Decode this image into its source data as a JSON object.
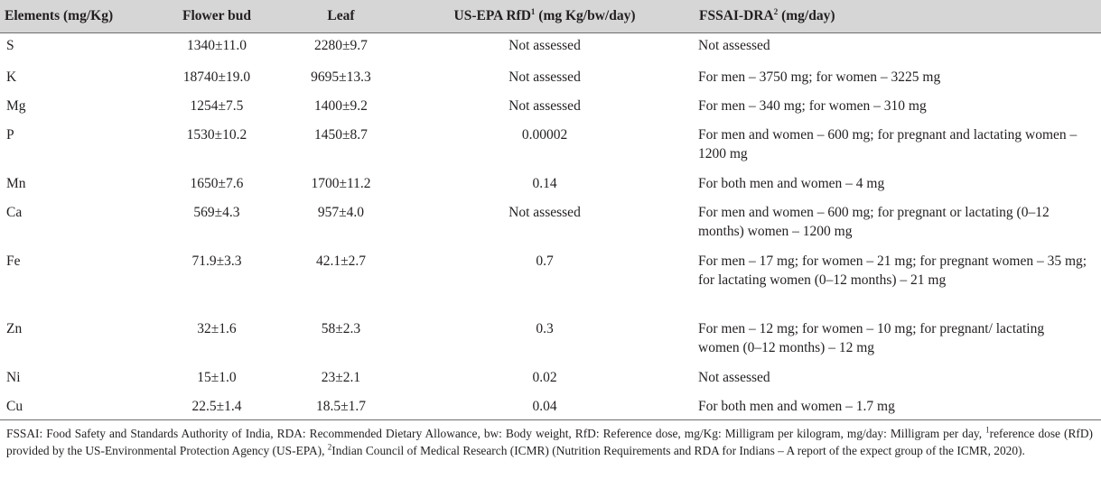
{
  "table": {
    "headers": {
      "elements": "Elements (mg/Kg)",
      "flower_bud": "Flower bud",
      "leaf": "Leaf",
      "us_epa": "US-EPA RfD",
      "us_epa_sup": "1",
      "us_epa_unit": " (mg Kg/bw/day)",
      "fssai": "FSSAI-DRA",
      "fssai_sup": "2",
      "fssai_unit": " (mg/day)"
    },
    "rows": [
      {
        "element": "S",
        "flower_bud": "1340±11.0",
        "leaf": "2280±9.7",
        "rfd": "Not assessed",
        "dra": "Not assessed"
      },
      {
        "element": "K",
        "flower_bud": "18740±19.0",
        "leaf": "9695±13.3",
        "rfd": "Not assessed",
        "dra": "For men – 3750 mg; for women – 3225 mg"
      },
      {
        "element": "Mg",
        "flower_bud": "1254±7.5",
        "leaf": "1400±9.2",
        "rfd": "Not assessed",
        "dra": "For men – 340 mg; for women – 310 mg"
      },
      {
        "element": "P",
        "flower_bud": "1530±10.2",
        "leaf": "1450±8.7",
        "rfd": "0.00002",
        "dra": "For men and women – 600 mg; for pregnant and lactating women – 1200 mg"
      },
      {
        "element": "Mn",
        "flower_bud": "1650±7.6",
        "leaf": "1700±11.2",
        "rfd": "0.14",
        "dra": "For both men and women – 4 mg"
      },
      {
        "element": "Ca",
        "flower_bud": "569±4.3",
        "leaf": "957±4.0",
        "rfd": "Not assessed",
        "dra": "For men and women – 600 mg; for pregnant or lactating (0–12 months) women – 1200 mg"
      },
      {
        "element": "Fe",
        "flower_bud": "71.9±3.3",
        "leaf": "42.1±2.7",
        "rfd": "0.7",
        "dra": "For men – 17 mg; for women – 21 mg; for pregnant women – 35 mg; for lactating women (0–12 months) – 21 mg"
      },
      {
        "element": "Zn",
        "flower_bud": "32±1.6",
        "leaf": "58±2.3",
        "rfd": "0.3",
        "dra": "For men – 12 mg; for women – 10 mg; for pregnant/ lactating women (0–12 months) – 12 mg"
      },
      {
        "element": "Ni",
        "flower_bud": "15±1.0",
        "leaf": "23±2.1",
        "rfd": "0.02",
        "dra": "Not assessed"
      },
      {
        "element": "Cu",
        "flower_bud": "22.5±1.4",
        "leaf": "18.5±1.7",
        "rfd": "0.04",
        "dra": "For both men and women – 1.7 mg"
      }
    ]
  },
  "footnote": {
    "part1": "FSSAI: Food Safety and Standards Authority of India, RDA: Recommended Dietary Allowance, bw: Body weight, RfD: Reference dose, mg/Kg: Milligram per kilogram, mg/day: Milligram per day, ",
    "sup1": "1",
    "part2": "reference dose (RfD) provided by the US-Environmental Protection Agency (US-EPA), ",
    "sup2": "2",
    "part3": "Indian Council of Medical Research (ICMR) (Nutrition Requirements and RDA for Indians – A report of the expect group of the ICMR, 2020)."
  }
}
